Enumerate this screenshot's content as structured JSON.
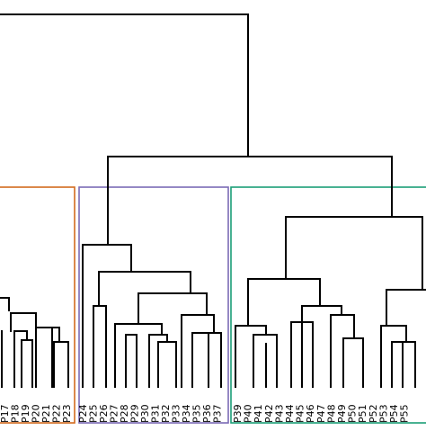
{
  "dendrogram": {
    "cluster_boxes": [
      {
        "id": "left",
        "color": "#d26a1e"
      },
      {
        "id": "middle",
        "color": "#7b6bb5"
      },
      {
        "id": "right",
        "color": "#1c9e77"
      }
    ],
    "leaf_labels": [
      "P17",
      "P18",
      "P19",
      "P20",
      "P21",
      "P22",
      "P23",
      "P24",
      "P25",
      "P26",
      "P27",
      "P28",
      "P29",
      "P30",
      "P31",
      "P32",
      "P33",
      "P34",
      "P35",
      "P36",
      "P37",
      "P39",
      "P40",
      "P41",
      "P42",
      "P43",
      "P44",
      "P45",
      "P46",
      "P47",
      "P48",
      "P49",
      "P50",
      "P51",
      "P52",
      "P53",
      "P54",
      "P55"
    ]
  }
}
